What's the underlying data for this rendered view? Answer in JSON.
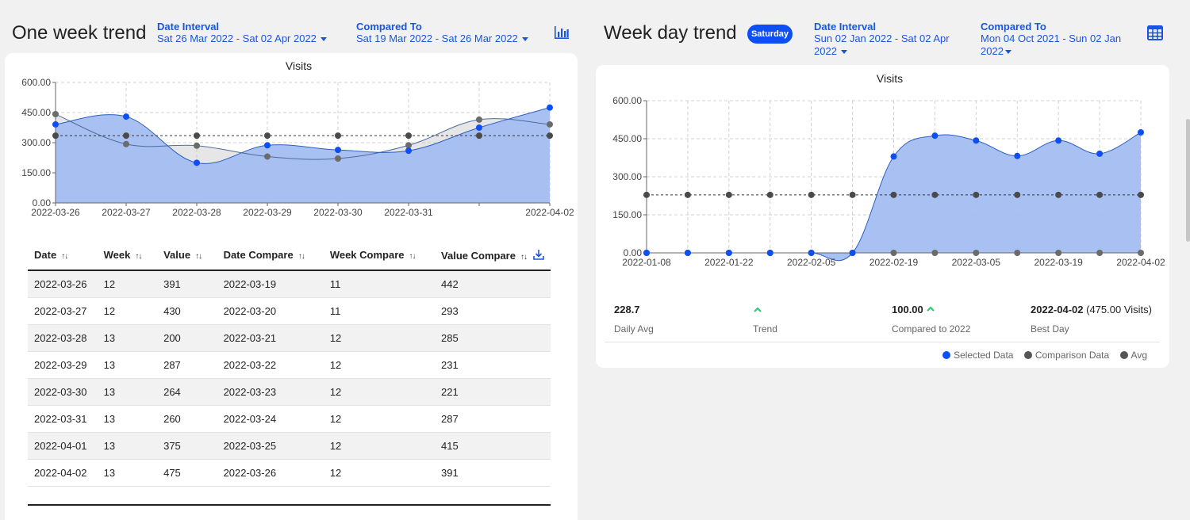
{
  "left": {
    "title": "One week trend",
    "date_interval_label": "Date Interval",
    "date_interval_value": "Sat 26 Mar 2022 - Sat 02 Apr 2022",
    "compared_to_label": "Compared To",
    "compared_to_value": "Sat 19 Mar 2022 - Sat 26 Mar 2022",
    "chart_icon": "bar-chart-icon"
  },
  "right": {
    "title": "Week day trend",
    "badge": "Saturday",
    "date_interval_label": "Date Interval",
    "date_interval_line1": "Sun 02 Jan 2022 - Sat 02 Apr",
    "date_interval_line2": "2022",
    "compared_to_label": "Compared To",
    "compared_to_line1": "Mon 04 Oct 2021 - Sun 02 Jan",
    "compared_to_line2": "2022",
    "table_icon": "table-icon"
  },
  "table": {
    "headers": [
      "Date",
      "Week",
      "Value",
      "Date Compare",
      "Week Compare",
      "Value Compare"
    ],
    "rows": [
      [
        "2022-03-26",
        "12",
        "391",
        "2022-03-19",
        "11",
        "442"
      ],
      [
        "2022-03-27",
        "12",
        "430",
        "2022-03-20",
        "11",
        "293"
      ],
      [
        "2022-03-28",
        "13",
        "200",
        "2022-03-21",
        "12",
        "285"
      ],
      [
        "2022-03-29",
        "13",
        "287",
        "2022-03-22",
        "12",
        "231"
      ],
      [
        "2022-03-30",
        "13",
        "264",
        "2022-03-23",
        "12",
        "221"
      ],
      [
        "2022-03-31",
        "13",
        "260",
        "2022-03-24",
        "12",
        "287"
      ],
      [
        "2022-04-01",
        "13",
        "375",
        "2022-03-25",
        "12",
        "415"
      ],
      [
        "2022-04-02",
        "13",
        "475",
        "2022-03-26",
        "12",
        "391"
      ]
    ],
    "download_icon": "download-icon",
    "sort_icon": "sort-icon"
  },
  "stats": {
    "daily_avg_value": "228.7",
    "daily_avg_label": "Daily Avg",
    "trend_label": "Trend",
    "compared_value": "100.00",
    "compared_label": "Compared to 2022",
    "best_day_value": "2022-04-02",
    "best_day_extra": "(475.00 Visits)",
    "best_day_label": "Best Day"
  },
  "legend": {
    "selected": "Selected Data",
    "comparison": "Comparison Data",
    "avg": "Avg"
  },
  "colors": {
    "selected": "#0d4ff5",
    "selected_fill": "#a4bdf2",
    "comparison": "#666666",
    "avg": "#4a4a4a",
    "trend_up": "#2ecc71"
  },
  "chart_data": [
    {
      "type": "area",
      "title": "Visits",
      "x": [
        "2022-03-26",
        "2022-03-27",
        "2022-03-28",
        "2022-03-29",
        "2022-03-30",
        "2022-03-31",
        "2022-04-01",
        "2022-04-02"
      ],
      "x_tick_labels": [
        "2022-03-26",
        "2022-03-27",
        "2022-03-28",
        "2022-03-29",
        "2022-03-30",
        "2022-03-31",
        "",
        "2022-04-02"
      ],
      "y_ticks": [
        "0.00",
        "150.00",
        "300.00",
        "450.00",
        "600.00"
      ],
      "ylim": [
        0,
        600
      ],
      "grid": true,
      "series": [
        {
          "name": "Selected Data",
          "values": [
            391,
            430,
            200,
            287,
            264,
            260,
            375,
            475
          ]
        },
        {
          "name": "Comparison Data",
          "values": [
            442,
            293,
            285,
            231,
            221,
            287,
            415,
            391
          ]
        },
        {
          "name": "Avg",
          "values": [
            335,
            335,
            335,
            335,
            335,
            335,
            335,
            335
          ]
        }
      ]
    },
    {
      "type": "area",
      "title": "Visits",
      "x": [
        "2022-01-08",
        "2022-01-15",
        "2022-01-22",
        "2022-01-29",
        "2022-02-05",
        "2022-02-12",
        "2022-02-19",
        "2022-02-26",
        "2022-03-05",
        "2022-03-12",
        "2022-03-19",
        "2022-03-26",
        "2022-04-02"
      ],
      "x_tick_labels": [
        "2022-01-08",
        "",
        "2022-01-22",
        "",
        "2022-02-05",
        "",
        "2022-02-19",
        "",
        "2022-03-05",
        "",
        "2022-03-19",
        "",
        "2022-04-02"
      ],
      "y_ticks": [
        "0.00",
        "150.00",
        "300.00",
        "450.00",
        "600.00"
      ],
      "ylim": [
        0,
        600
      ],
      "grid": true,
      "series": [
        {
          "name": "Selected Data",
          "values": [
            0,
            0,
            0,
            0,
            0,
            0,
            380,
            462,
            443,
            382,
            443,
            391,
            475
          ]
        },
        {
          "name": "Comparison Data",
          "values": [
            0,
            0,
            0,
            0,
            0,
            0,
            0,
            0,
            0,
            0,
            0,
            0,
            0
          ]
        },
        {
          "name": "Avg",
          "values": [
            228.7,
            228.7,
            228.7,
            228.7,
            228.7,
            228.7,
            228.7,
            228.7,
            228.7,
            228.7,
            228.7,
            228.7,
            228.7
          ]
        }
      ]
    }
  ]
}
